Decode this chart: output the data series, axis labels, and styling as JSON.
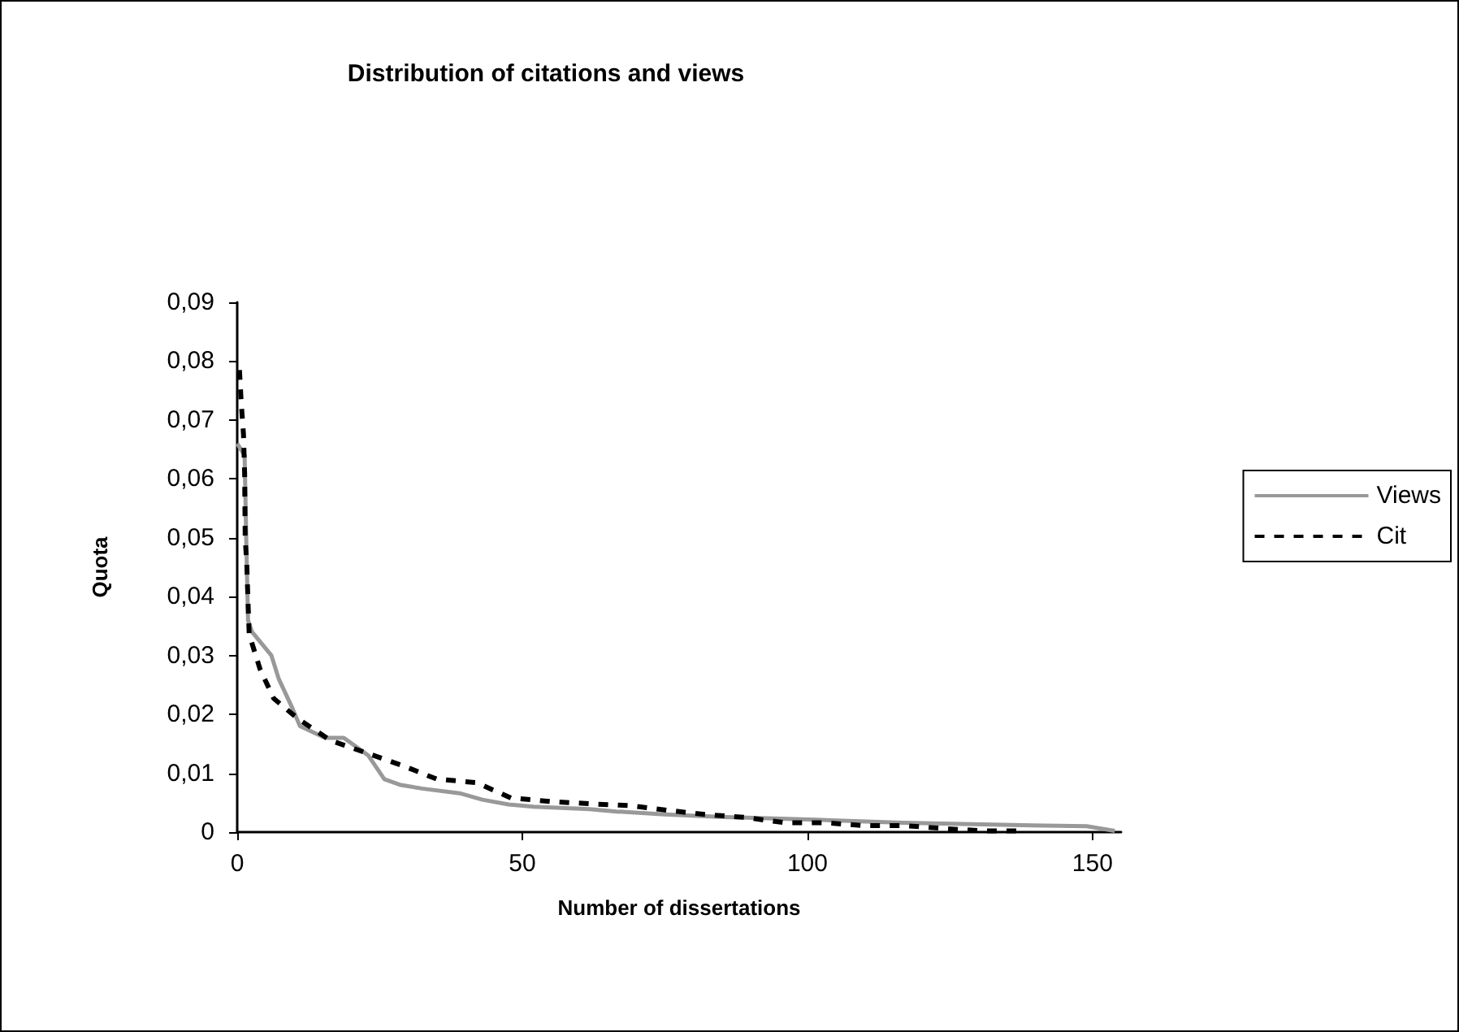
{
  "chart_data": {
    "type": "line",
    "title": "Distribution of citations and views",
    "xlabel": "Number of dissertations",
    "ylabel": "Quota",
    "xlim": [
      0,
      155
    ],
    "xticks": [
      0,
      50,
      100,
      150
    ],
    "ylim": [
      0,
      0.09
    ],
    "yticks": [
      {
        "value": 0,
        "label": "0"
      },
      {
        "value": 0.01,
        "label": "0,01"
      },
      {
        "value": 0.02,
        "label": "0,02"
      },
      {
        "value": 0.03,
        "label": "0,03"
      },
      {
        "value": 0.04,
        "label": "0,04"
      },
      {
        "value": 0.05,
        "label": "0,05"
      },
      {
        "value": 0.06,
        "label": "0,06"
      },
      {
        "value": 0.07,
        "label": "0,07"
      },
      {
        "value": 0.08,
        "label": "0,08"
      },
      {
        "value": 0.09,
        "label": "0,09"
      }
    ],
    "grid": false,
    "legend": "right",
    "marker": "none",
    "series": [
      {
        "name": "Views",
        "color": "#999999",
        "line_style": "solid",
        "x": [
          0,
          1.3,
          1.6,
          1.9,
          2.6,
          6,
          7.3,
          9.7,
          11,
          15.4,
          18.7,
          23,
          25.8,
          28.7,
          32.4,
          39,
          43,
          47.6,
          52,
          61.8,
          66.5,
          75,
          84.5,
          101.5,
          116.7,
          136,
          149,
          153.9
        ],
        "values": [
          0.066,
          0.064,
          0.049,
          0.036,
          0.034,
          0.03,
          0.026,
          0.021,
          0.018,
          0.016,
          0.016,
          0.013,
          0.009,
          0.008,
          0.0074,
          0.0066,
          0.0055,
          0.0047,
          0.0043,
          0.0039,
          0.0035,
          0.003,
          0.0026,
          0.0021,
          0.0016,
          0.0012,
          0.001,
          0.0002
        ]
      },
      {
        "name": "Cit",
        "color": "#000000",
        "line_style": "dashed",
        "x": [
          0.4,
          0.7,
          1.1,
          1.3,
          1.4,
          1.7,
          1.9,
          2.1,
          4,
          6.4,
          10.6,
          16.3,
          22.5,
          29,
          35,
          42,
          48,
          55,
          62,
          69,
          75.5,
          82,
          89,
          96,
          103,
          110,
          117,
          124,
          131,
          138
        ],
        "values": [
          0.0785,
          0.073,
          0.0676,
          0.061,
          0.05,
          0.045,
          0.039,
          0.0336,
          0.0277,
          0.0227,
          0.0193,
          0.0156,
          0.0135,
          0.0113,
          0.009,
          0.0084,
          0.0058,
          0.0052,
          0.0048,
          0.0045,
          0.0037,
          0.003,
          0.0025,
          0.0016,
          0.0016,
          0.0011,
          0.0011,
          0.0006,
          0.0002,
          0.0002
        ]
      }
    ]
  }
}
